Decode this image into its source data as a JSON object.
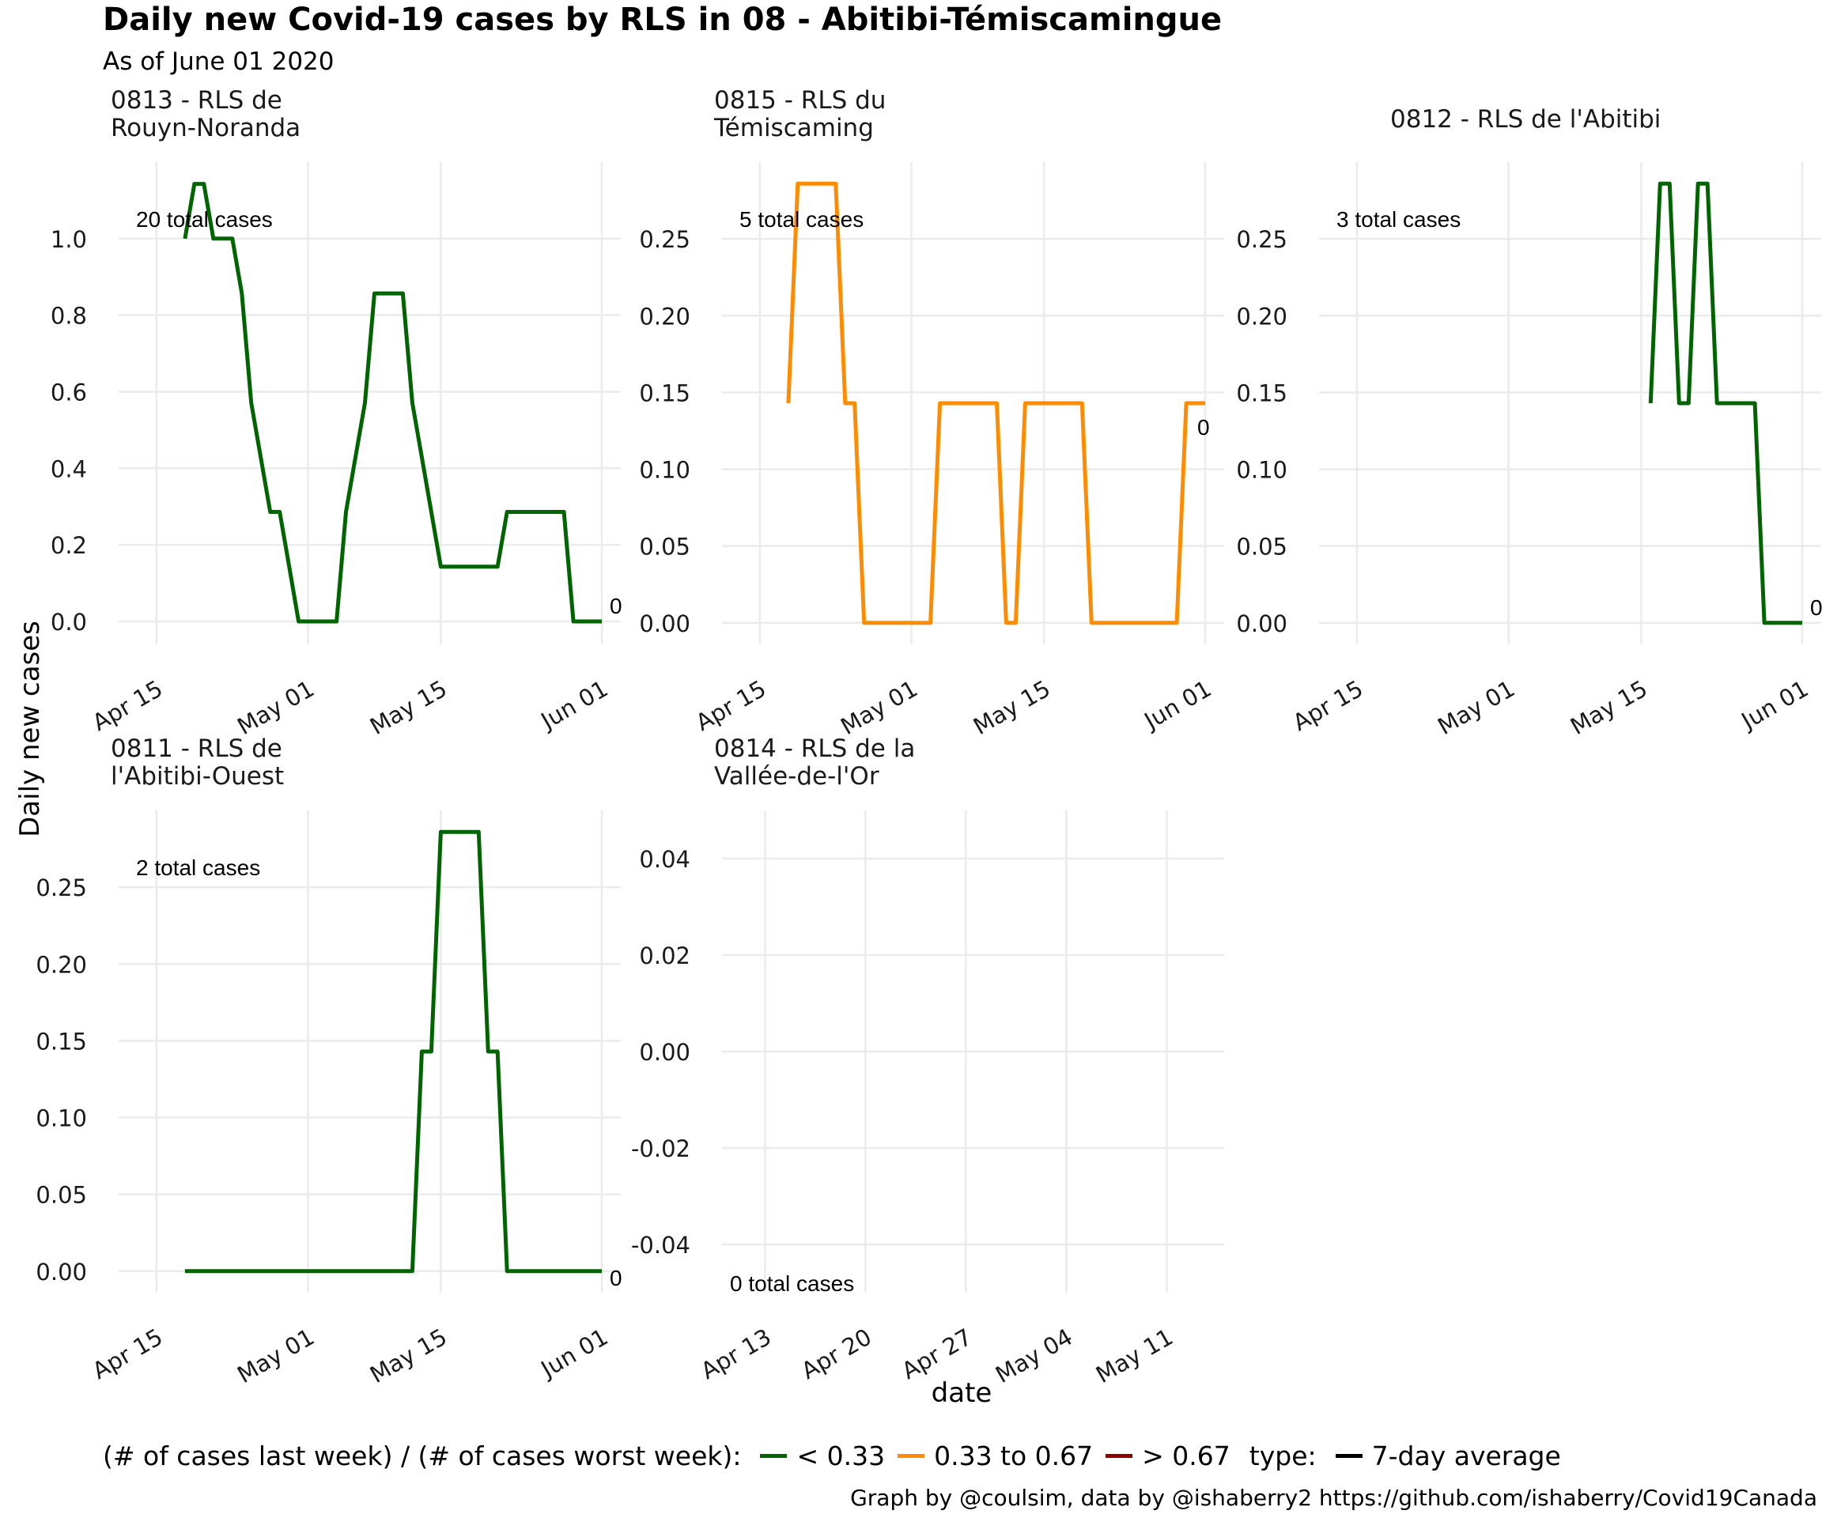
{
  "title": "Daily new Covid-19 cases by RLS in 08 - Abitibi-Témiscamingue",
  "subtitle": "As of June 01 2020",
  "ylabel": "Daily new cases",
  "xlabel": "date",
  "legend": {
    "color_title": "(# of cases last week) / (# of cases worst week):",
    "items": [
      {
        "label": "< 0.33",
        "color": "#006400"
      },
      {
        "label": "0.33 to 0.67",
        "color": "#FF8C00"
      },
      {
        "label": "> 0.67",
        "color": "#8B0000"
      }
    ],
    "type_title": "type:",
    "type_item": {
      "label": "7-day average",
      "color": "#000000"
    }
  },
  "caption": "Graph by @coulsim, data by @ishaberry2 https://github.com/ishaberry/Covid19Canada",
  "chart_data": [
    {
      "type": "line",
      "panel_title": [
        "0813 - RLS de",
        "Rouyn-Noranda"
      ],
      "total_label": "20 total cases",
      "end_label": "0",
      "color": "#006400",
      "xlim": [
        "2020-04-11",
        "2020-06-03"
      ],
      "ylim": [
        -0.06,
        1.2
      ],
      "yticks": [
        0.0,
        0.2,
        0.4,
        0.6,
        0.8,
        1.0
      ],
      "ytick_labels": [
        "0.0",
        "0.2",
        "0.4",
        "0.6",
        "0.8",
        "1.0"
      ],
      "xticks": [
        "2020-04-15",
        "2020-05-01",
        "2020-05-15",
        "2020-06-01"
      ],
      "xtick_labels": [
        "Apr 15",
        "May 01",
        "May 15",
        "Jun 01"
      ],
      "x": [
        "2020-04-18",
        "2020-04-19",
        "2020-04-20",
        "2020-04-21",
        "2020-04-22",
        "2020-04-23",
        "2020-04-24",
        "2020-04-25",
        "2020-04-26",
        "2020-04-27",
        "2020-04-28",
        "2020-04-29",
        "2020-04-30",
        "2020-05-01",
        "2020-05-02",
        "2020-05-03",
        "2020-05-04",
        "2020-05-05",
        "2020-05-06",
        "2020-05-07",
        "2020-05-08",
        "2020-05-09",
        "2020-05-10",
        "2020-05-11",
        "2020-05-12",
        "2020-05-13",
        "2020-05-14",
        "2020-05-15",
        "2020-05-16",
        "2020-05-17",
        "2020-05-18",
        "2020-05-19",
        "2020-05-20",
        "2020-05-21",
        "2020-05-22",
        "2020-05-23",
        "2020-05-24",
        "2020-05-25",
        "2020-05-26",
        "2020-05-27",
        "2020-05-28",
        "2020-05-29",
        "2020-05-30",
        "2020-05-31",
        "2020-06-01"
      ],
      "y": [
        1.0,
        1.143,
        1.143,
        1.0,
        1.0,
        1.0,
        0.857,
        0.571,
        0.429,
        0.286,
        0.286,
        0.143,
        0.0,
        0.0,
        0.0,
        0.0,
        0.0,
        0.286,
        0.429,
        0.571,
        0.857,
        0.857,
        0.857,
        0.857,
        0.571,
        0.429,
        0.286,
        0.143,
        0.143,
        0.143,
        0.143,
        0.143,
        0.143,
        0.143,
        0.286,
        0.286,
        0.286,
        0.286,
        0.286,
        0.286,
        0.286,
        0.0,
        0.0,
        0.0,
        0.0
      ]
    },
    {
      "type": "line",
      "panel_title": [
        "0815 - RLS du",
        "Témiscaming"
      ],
      "total_label": "5 total cases",
      "end_label": "0",
      "color": "#FF8C00",
      "xlim": [
        "2020-04-11",
        "2020-06-03"
      ],
      "ylim": [
        -0.014,
        0.3
      ],
      "yticks": [
        0.0,
        0.05,
        0.1,
        0.15,
        0.2,
        0.25
      ],
      "ytick_labels": [
        "0.00",
        "0.05",
        "0.10",
        "0.15",
        "0.20",
        "0.25"
      ],
      "xticks": [
        "2020-04-15",
        "2020-05-01",
        "2020-05-15",
        "2020-06-01"
      ],
      "xtick_labels": [
        "Apr 15",
        "May 01",
        "May 15",
        "Jun 01"
      ],
      "x": [
        "2020-04-18",
        "2020-04-19",
        "2020-04-20",
        "2020-04-21",
        "2020-04-22",
        "2020-04-23",
        "2020-04-24",
        "2020-04-25",
        "2020-04-26",
        "2020-04-27",
        "2020-04-28",
        "2020-04-29",
        "2020-04-30",
        "2020-05-01",
        "2020-05-02",
        "2020-05-03",
        "2020-05-04",
        "2020-05-05",
        "2020-05-06",
        "2020-05-07",
        "2020-05-08",
        "2020-05-09",
        "2020-05-10",
        "2020-05-11",
        "2020-05-12",
        "2020-05-13",
        "2020-05-14",
        "2020-05-15",
        "2020-05-16",
        "2020-05-17",
        "2020-05-18",
        "2020-05-19",
        "2020-05-20",
        "2020-05-21",
        "2020-05-22",
        "2020-05-23",
        "2020-05-24",
        "2020-05-25",
        "2020-05-26",
        "2020-05-27",
        "2020-05-28",
        "2020-05-29",
        "2020-05-30",
        "2020-05-31",
        "2020-06-01"
      ],
      "y": [
        0.143,
        0.286,
        0.286,
        0.286,
        0.286,
        0.286,
        0.143,
        0.143,
        0.0,
        0.0,
        0.0,
        0.0,
        0.0,
        0.0,
        0.0,
        0.0,
        0.143,
        0.143,
        0.143,
        0.143,
        0.143,
        0.143,
        0.143,
        0.0,
        0.0,
        0.143,
        0.143,
        0.143,
        0.143,
        0.143,
        0.143,
        0.143,
        0.0,
        0.0,
        0.0,
        0.0,
        0.0,
        0.0,
        0.0,
        0.0,
        0.0,
        0.0,
        0.143,
        0.143,
        0.143
      ]
    },
    {
      "type": "line",
      "panel_title": [
        "0812 - RLS de l'Abitibi"
      ],
      "total_label": "3 total cases",
      "end_label": "0",
      "color": "#006400",
      "xlim": [
        "2020-04-11",
        "2020-06-03"
      ],
      "ylim": [
        -0.014,
        0.3
      ],
      "yticks": [
        0.0,
        0.05,
        0.1,
        0.15,
        0.2,
        0.25
      ],
      "ytick_labels": [
        "0.00",
        "0.05",
        "0.10",
        "0.15",
        "0.20",
        "0.25"
      ],
      "xticks": [
        "2020-04-15",
        "2020-05-01",
        "2020-05-15",
        "2020-06-01"
      ],
      "xtick_labels": [
        "Apr 15",
        "May 01",
        "May 15",
        "Jun 01"
      ],
      "x": [
        "2020-05-16",
        "2020-05-17",
        "2020-05-18",
        "2020-05-19",
        "2020-05-20",
        "2020-05-21",
        "2020-05-22",
        "2020-05-23",
        "2020-05-24",
        "2020-05-25",
        "2020-05-26",
        "2020-05-27",
        "2020-05-28",
        "2020-05-29",
        "2020-05-30",
        "2020-05-31",
        "2020-06-01"
      ],
      "y": [
        0.143,
        0.286,
        0.286,
        0.143,
        0.143,
        0.286,
        0.286,
        0.143,
        0.143,
        0.143,
        0.143,
        0.143,
        0.0,
        0.0,
        0.0,
        0.0,
        0.0
      ]
    },
    {
      "type": "line",
      "panel_title": [
        "0811 - RLS de",
        "l'Abitibi-Ouest"
      ],
      "total_label": "2 total cases",
      "end_label": "0",
      "color": "#006400",
      "xlim": [
        "2020-04-11",
        "2020-06-03"
      ],
      "ylim": [
        -0.014,
        0.3
      ],
      "yticks": [
        0.0,
        0.05,
        0.1,
        0.15,
        0.2,
        0.25
      ],
      "ytick_labels": [
        "0.00",
        "0.05",
        "0.10",
        "0.15",
        "0.20",
        "0.25"
      ],
      "xticks": [
        "2020-04-15",
        "2020-05-01",
        "2020-05-15",
        "2020-06-01"
      ],
      "xtick_labels": [
        "Apr 15",
        "May 01",
        "May 15",
        "Jun 01"
      ],
      "x": [
        "2020-04-18",
        "2020-05-12",
        "2020-05-13",
        "2020-05-14",
        "2020-05-15",
        "2020-05-16",
        "2020-05-17",
        "2020-05-18",
        "2020-05-19",
        "2020-05-20",
        "2020-05-21",
        "2020-05-22",
        "2020-06-01"
      ],
      "y": [
        0.0,
        0.0,
        0.143,
        0.143,
        0.286,
        0.286,
        0.286,
        0.286,
        0.286,
        0.143,
        0.143,
        0.0,
        0.0
      ]
    },
    {
      "type": "line",
      "panel_title": [
        "0814 - RLS de la",
        "Vallée-de-l'Or"
      ],
      "total_label": "0 total cases",
      "end_label": "",
      "color": "#006400",
      "xlim": [
        "2020-04-10",
        "2020-05-15"
      ],
      "ylim": [
        -0.05,
        0.05
      ],
      "yticks": [
        -0.04,
        -0.02,
        0.0,
        0.02,
        0.04
      ],
      "ytick_labels": [
        "-0.04",
        "-0.02",
        "0.00",
        "0.02",
        "0.04"
      ],
      "xticks": [
        "2020-04-13",
        "2020-04-20",
        "2020-04-27",
        "2020-05-04",
        "2020-05-11"
      ],
      "xtick_labels": [
        "Apr 13",
        "Apr 20",
        "Apr 27",
        "May 04",
        "May 11"
      ],
      "x": [],
      "y": []
    }
  ]
}
